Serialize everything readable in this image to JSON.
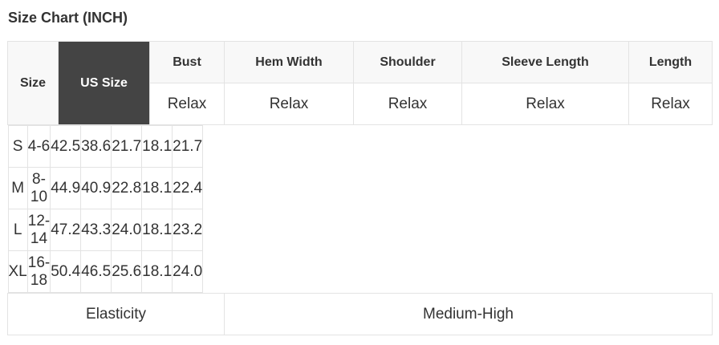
{
  "title": "Size Chart (INCH)",
  "headers": {
    "size": "Size",
    "us_size": "US Size",
    "columns": [
      "Bust",
      "Hem Width",
      "Shoulder",
      "Sleeve Length",
      "Length"
    ],
    "fit": [
      "Relax",
      "Relax",
      "Relax",
      "Relax",
      "Relax"
    ]
  },
  "rows": [
    [
      "S",
      "4-6",
      "42.5",
      "38.6",
      "21.7",
      "18.1",
      "21.7"
    ],
    [
      "M",
      "8-10",
      "44.9",
      "40.9",
      "22.8",
      "18.1",
      "22.4"
    ],
    [
      "L",
      "12-14",
      "47.2",
      "43.3",
      "24.0",
      "18.1",
      "23.2"
    ],
    [
      "XL",
      "16-18",
      "50.4",
      "46.5",
      "25.6",
      "18.1",
      "24.0"
    ]
  ],
  "elasticity": {
    "label": "Elasticity",
    "value": "Medium-High"
  },
  "colors": {
    "us_size_header_bg": "#444444",
    "header_bg": "#f8f8f8",
    "border": "#e3e3e3"
  }
}
